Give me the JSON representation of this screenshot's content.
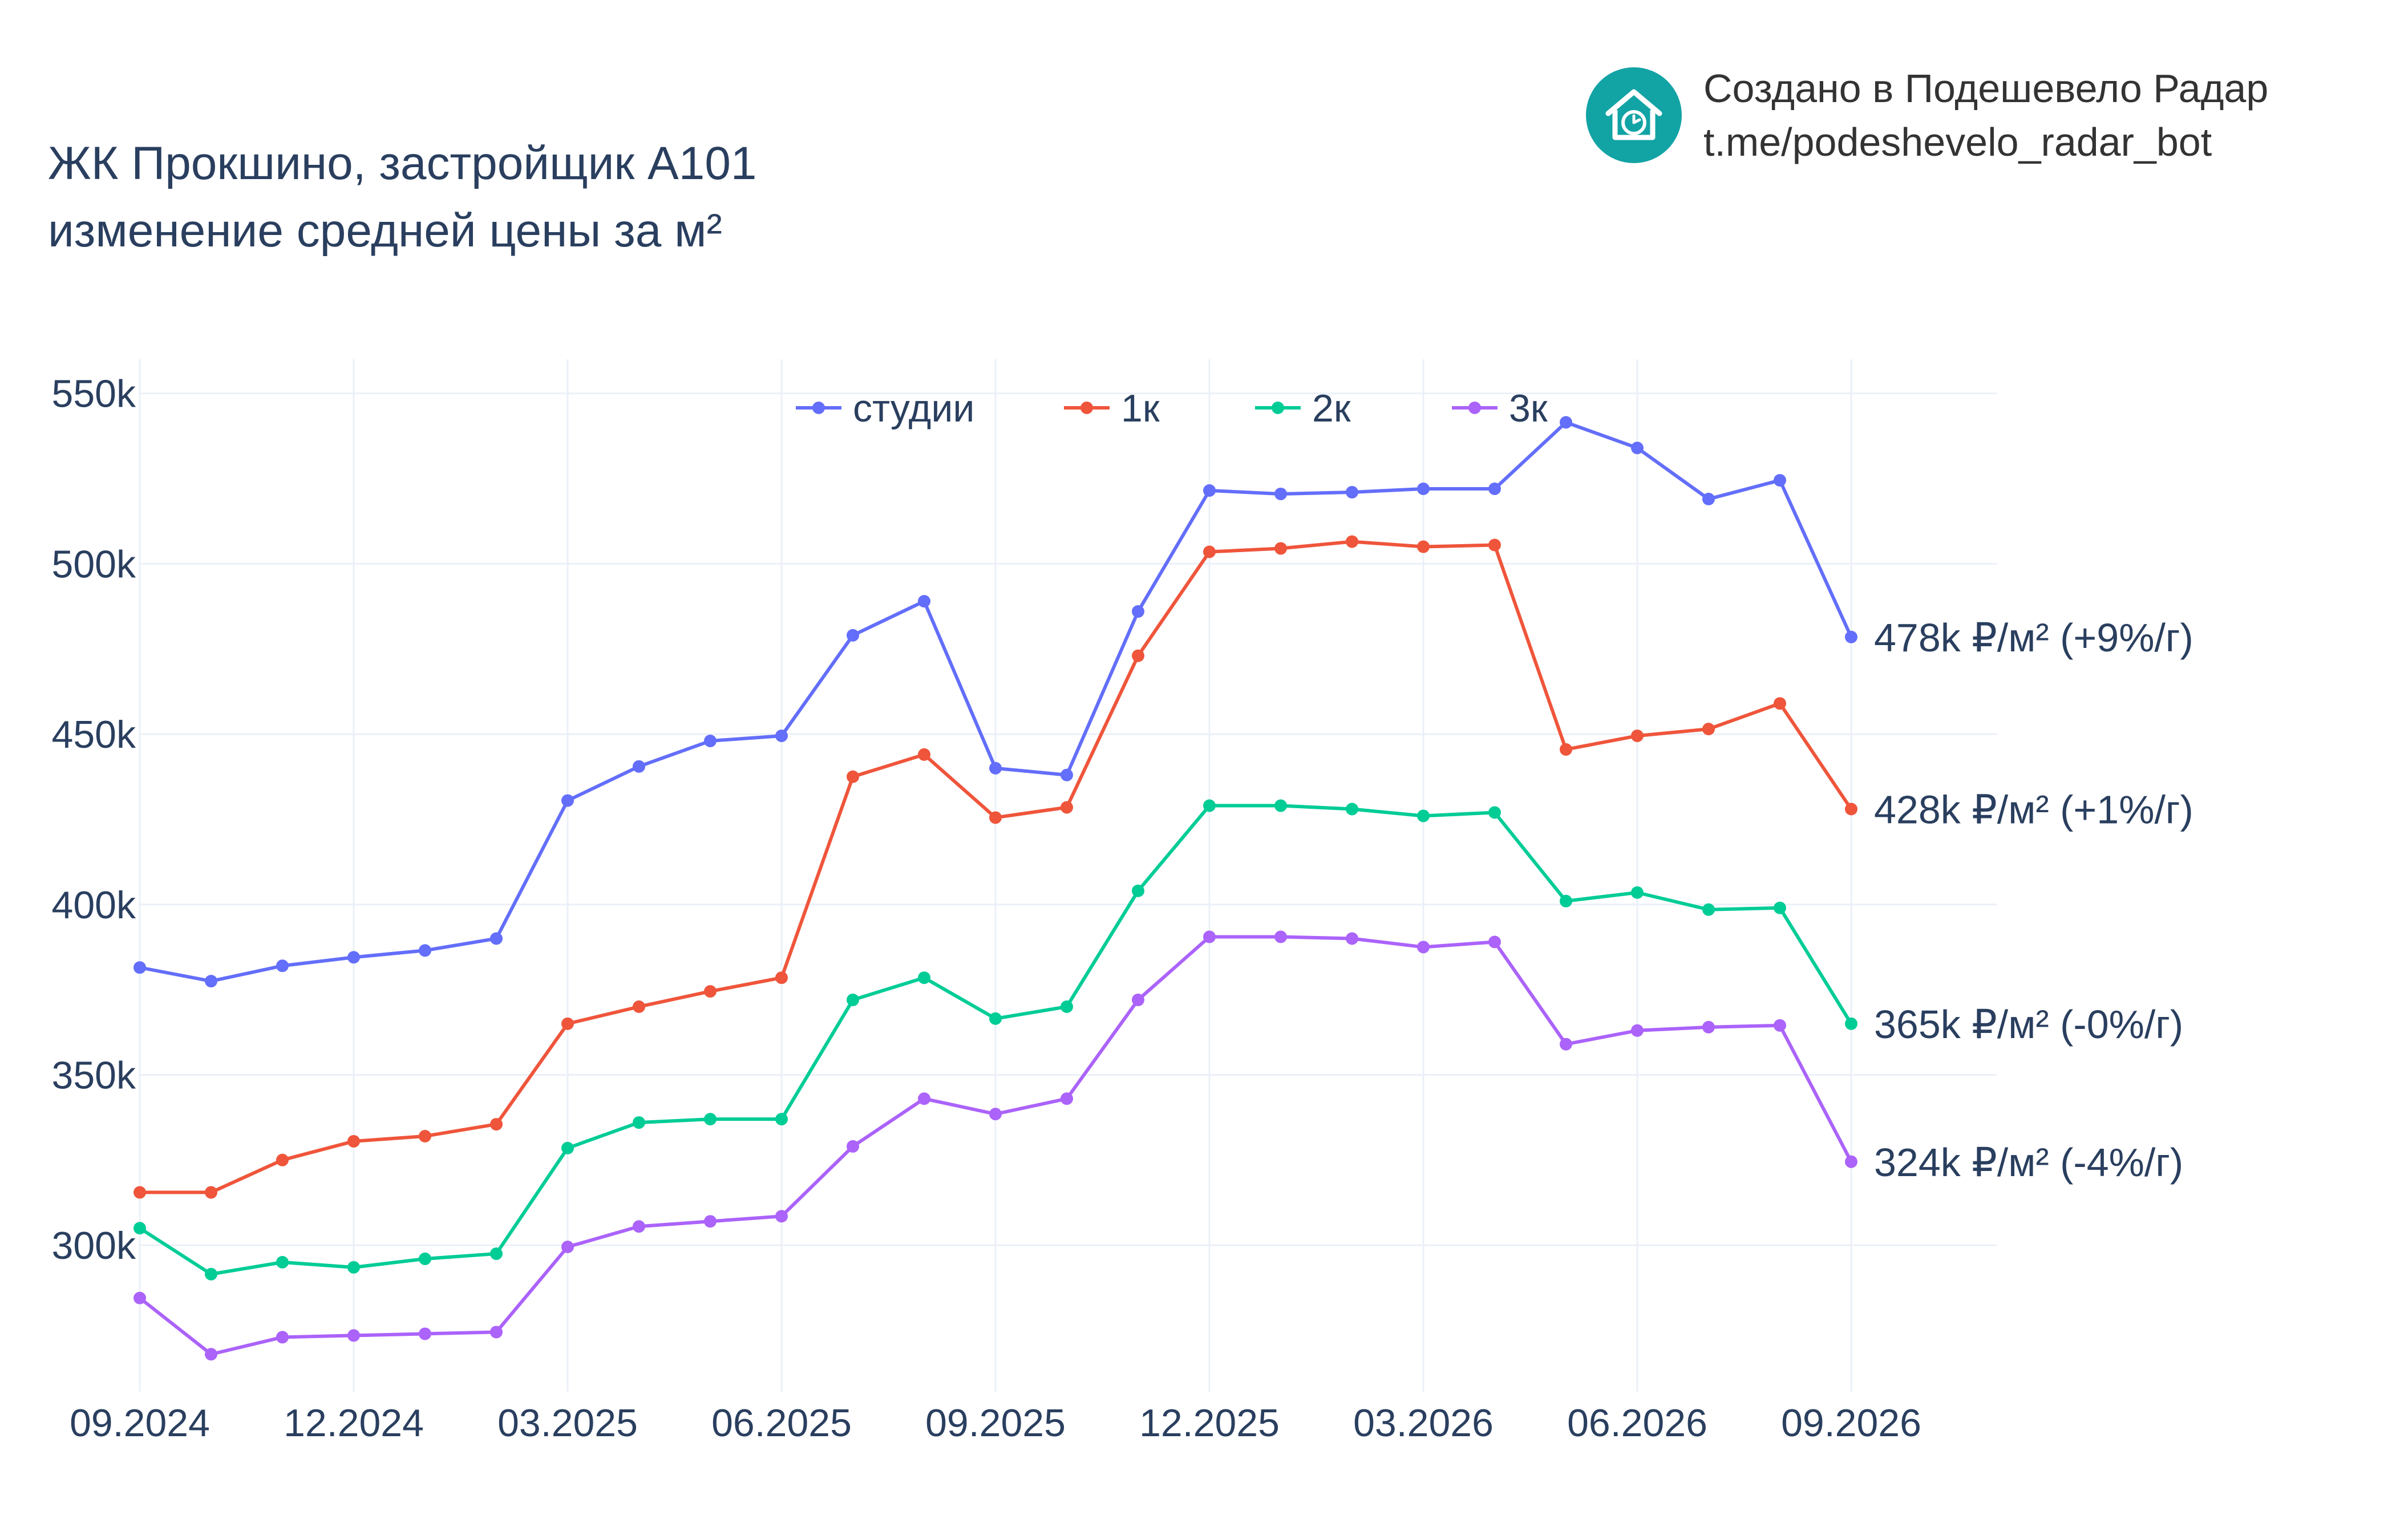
{
  "title": {
    "line1": "ЖК Прокшино, застройщик А101",
    "line2": "изменение средней цены за м²"
  },
  "branding": {
    "line1": "Создано в Подешевело Радар",
    "line2": "t.me/podeshevelo_radar_bot",
    "logo_icon": "house-clock-icon",
    "logo_color": "#12a3a5"
  },
  "chart_data": {
    "type": "line",
    "x": [
      "2024-09",
      "2024-10",
      "2024-11",
      "2024-12",
      "2025-01",
      "2025-02",
      "2025-03",
      "2025-04",
      "2025-05",
      "2025-06",
      "2025-07",
      "2025-08",
      "2025-09",
      "2025-10",
      "2025-11",
      "2025-12",
      "2026-01",
      "2026-02",
      "2026-03",
      "2026-04",
      "2026-05",
      "2026-06",
      "2026-07",
      "2026-08",
      "2026-09"
    ],
    "x_ticks": [
      {
        "x": "2024-09",
        "label": "09.2024"
      },
      {
        "x": "2024-12",
        "label": "12.2024"
      },
      {
        "x": "2025-03",
        "label": "03.2025"
      },
      {
        "x": "2025-06",
        "label": "06.2025"
      },
      {
        "x": "2025-09",
        "label": "09.2025"
      },
      {
        "x": "2025-12",
        "label": "12.2025"
      },
      {
        "x": "2026-03",
        "label": "03.2026"
      },
      {
        "x": "2026-06",
        "label": "06.2026"
      },
      {
        "x": "2026-09",
        "label": "09.2026"
      }
    ],
    "y_ticks": [
      {
        "value": 300000,
        "label": "300k"
      },
      {
        "value": 350000,
        "label": "350k"
      },
      {
        "value": 400000,
        "label": "400k"
      },
      {
        "value": 450000,
        "label": "450k"
      },
      {
        "value": 500000,
        "label": "500k"
      },
      {
        "value": 550000,
        "label": "550k"
      }
    ],
    "ylim": [
      257000,
      560000
    ],
    "grid": true,
    "legend_position": "top-center",
    "series": [
      {
        "name": "студии",
        "color": "#636efa",
        "values": [
          381500,
          377500,
          382000,
          384500,
          386500,
          390000,
          430500,
          440500,
          448000,
          449500,
          479000,
          489000,
          440000,
          438000,
          486000,
          521500,
          520500,
          521000,
          522000,
          522000,
          541500,
          534000,
          519000,
          524500,
          478500
        ],
        "end_label": "478k ₽/м² (+9%/г)"
      },
      {
        "name": "1к",
        "color": "#ef553b",
        "values": [
          315500,
          315500,
          325000,
          330500,
          332000,
          335500,
          365000,
          370000,
          374500,
          378500,
          437500,
          444000,
          425500,
          428500,
          473000,
          503500,
          504500,
          506500,
          505000,
          505500,
          445500,
          449500,
          451500,
          459000,
          428000
        ],
        "end_label": "428k ₽/м² (+1%/г)"
      },
      {
        "name": "2к",
        "color": "#00cc96",
        "values": [
          305000,
          291500,
          295000,
          293500,
          296000,
          297500,
          328500,
          336000,
          337000,
          337000,
          372000,
          378500,
          366500,
          370000,
          404000,
          429000,
          429000,
          428000,
          426000,
          427000,
          401000,
          403500,
          398500,
          399000,
          365000
        ],
        "end_label": "365k ₽/м² (-0%/г)"
      },
      {
        "name": "3к",
        "color": "#ab63fa",
        "values": [
          284500,
          268000,
          273000,
          273500,
          274000,
          274500,
          299500,
          305500,
          307000,
          308500,
          329000,
          343000,
          338500,
          343000,
          372000,
          390500,
          390500,
          390000,
          387500,
          389000,
          359000,
          363000,
          364000,
          364500,
          324500
        ],
        "end_label": "324k ₽/м² (-4%/г)"
      }
    ]
  }
}
